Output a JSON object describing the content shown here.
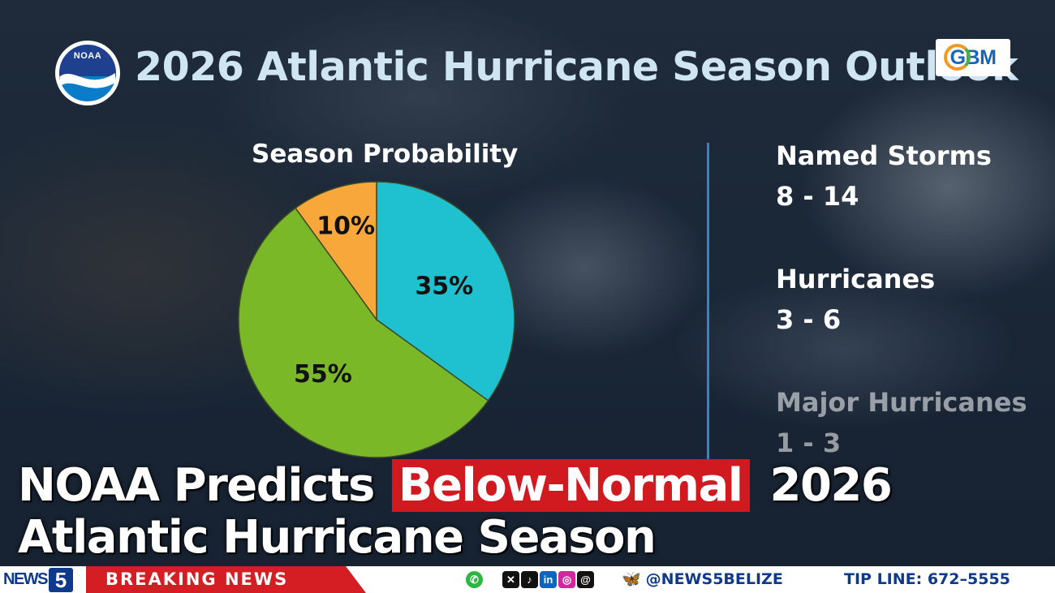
{
  "header": {
    "title": "2026 Atlantic Hurricane Season Outlook",
    "noaa_logo_text": "NOAA",
    "gbm_logo_text": "GBM"
  },
  "chart_data": {
    "type": "pie",
    "title": "Season Probability",
    "categories": [
      "",
      "",
      ""
    ],
    "values": [
      35,
      55,
      10
    ],
    "labels": [
      "35%",
      "55%",
      "10%"
    ],
    "colors": [
      "#1fc0cf",
      "#7ab827",
      "#f8a73b"
    ]
  },
  "stats": [
    {
      "label": "Named Storms",
      "value": "8 - 14"
    },
    {
      "label": "Hurricanes",
      "value": "3 - 6"
    },
    {
      "label": "Major Hurricanes",
      "value": "1 - 3"
    }
  ],
  "headline": {
    "line1_a": "NOAA Predicts",
    "line1_highlight": "Below-Normal",
    "line1_b": "2026",
    "line2": "Atlantic Hurricane Season"
  },
  "ticker": {
    "logo_text": "NEWS",
    "logo_number": "5",
    "breaking": "BREAKING NEWS",
    "icons": [
      "whatsapp-icon",
      "x-icon",
      "tiktok-icon",
      "linkedin-icon",
      "instagram-icon",
      "threads-icon",
      "bluesky-icon"
    ],
    "handle": "@NEWS5BELIZE",
    "tipline": "TIP LINE: 672–5555"
  },
  "colors": {
    "title": "#cfe6f2",
    "highlight_red": "#d11a1f",
    "divider": "#2f86c8",
    "ticker_blue": "#0e3a8c"
  }
}
